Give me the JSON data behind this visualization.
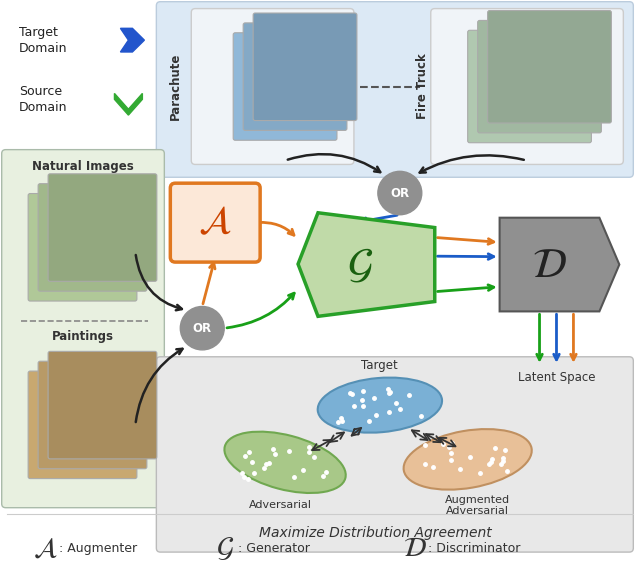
{
  "fig_width": 6.4,
  "fig_height": 5.65,
  "dpi": 100,
  "bg_color": "#ffffff",
  "top_panel_color": "#dce9f5",
  "left_panel_color": "#e8f0e0",
  "bottom_panel_color": "#e8e8e8",
  "augmenter_box_color": "#fce8d8",
  "augmenter_border_color": "#e07820",
  "generator_color": "#c0daa8",
  "generator_border_color": "#28a028",
  "discriminator_color": "#909090",
  "or_circle_color": "#909090",
  "arrow_black": "#222222",
  "arrow_orange": "#e07820",
  "arrow_blue": "#1a5cc8",
  "arrow_green": "#18a018",
  "target_ellipse_color": "#7ab0d5",
  "adversarial_ellipse_color": "#a8c888",
  "aug_adversarial_ellipse_color": "#e8c098",
  "parachute_label": "Parachute",
  "fire_truck_label": "Fire Truck",
  "natural_images_label": "Natural Images",
  "paintings_label": "Paintings",
  "target_domain_label": "Target\nDomain",
  "source_domain_label": "Source\nDomain",
  "or_label": "OR",
  "target_ellipse_label": "Target",
  "adversarial_label": "Adversarial",
  "aug_adversarial_label": "Augmented\nAdversarial",
  "mda_label": "Maximize Distribution Agreement",
  "latent_space_label": "Latent Space"
}
